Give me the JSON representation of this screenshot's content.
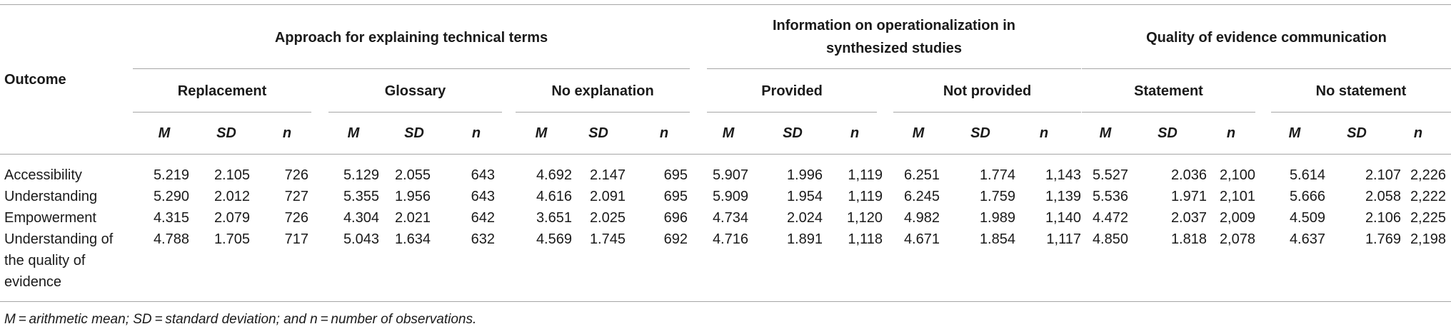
{
  "table": {
    "row_header": "Outcome",
    "groups": [
      "Approach for explaining technical terms",
      [
        "Information on operationalization in",
        "synthesized studies"
      ],
      "Quality of evidence communication"
    ],
    "subgroups": [
      "Replacement",
      "Glossary",
      "No explanation",
      "Provided",
      "Not provided",
      "Statement",
      "No statement"
    ],
    "stats": [
      "M",
      "SD",
      "n"
    ],
    "rows": [
      {
        "outcome": [
          "Accessibility"
        ],
        "cells": [
          "5.219",
          "2.105",
          "726",
          "5.129",
          "2.055",
          "643",
          "4.692",
          "2.147",
          "695",
          "5.907",
          "1.996",
          "1,119",
          "6.251",
          "1.774",
          "1,143",
          "5.527",
          "2.036",
          "2,100",
          "5.614",
          "2.107",
          "2,226"
        ]
      },
      {
        "outcome": [
          "Understanding"
        ],
        "cells": [
          "5.290",
          "2.012",
          "727",
          "5.355",
          "1.956",
          "643",
          "4.616",
          "2.091",
          "695",
          "5.909",
          "1.954",
          "1,119",
          "6.245",
          "1.759",
          "1,139",
          "5.536",
          "1.971",
          "2,101",
          "5.666",
          "2.058",
          "2,222"
        ]
      },
      {
        "outcome": [
          "Empowerment"
        ],
        "cells": [
          "4.315",
          "2.079",
          "726",
          "4.304",
          "2.021",
          "642",
          "3.651",
          "2.025",
          "696",
          "4.734",
          "2.024",
          "1,120",
          "4.982",
          "1.989",
          "1,140",
          "4.472",
          "2.037",
          "2,009",
          "4.509",
          "2.106",
          "2,225"
        ]
      },
      {
        "outcome": [
          "Understanding of",
          "the quality of",
          "evidence"
        ],
        "cells": [
          "4.788",
          "1.705",
          "717",
          "5.043",
          "1.634",
          "632",
          "4.569",
          "1.745",
          "692",
          "4.716",
          "1.891",
          "1,118",
          "4.671",
          "1.854",
          "1,117",
          "4.850",
          "1.818",
          "2,078",
          "4.637",
          "1.769",
          "2,198"
        ]
      }
    ]
  },
  "footnote": "M = arithmetic mean; SD = standard deviation; and n = number of observations."
}
